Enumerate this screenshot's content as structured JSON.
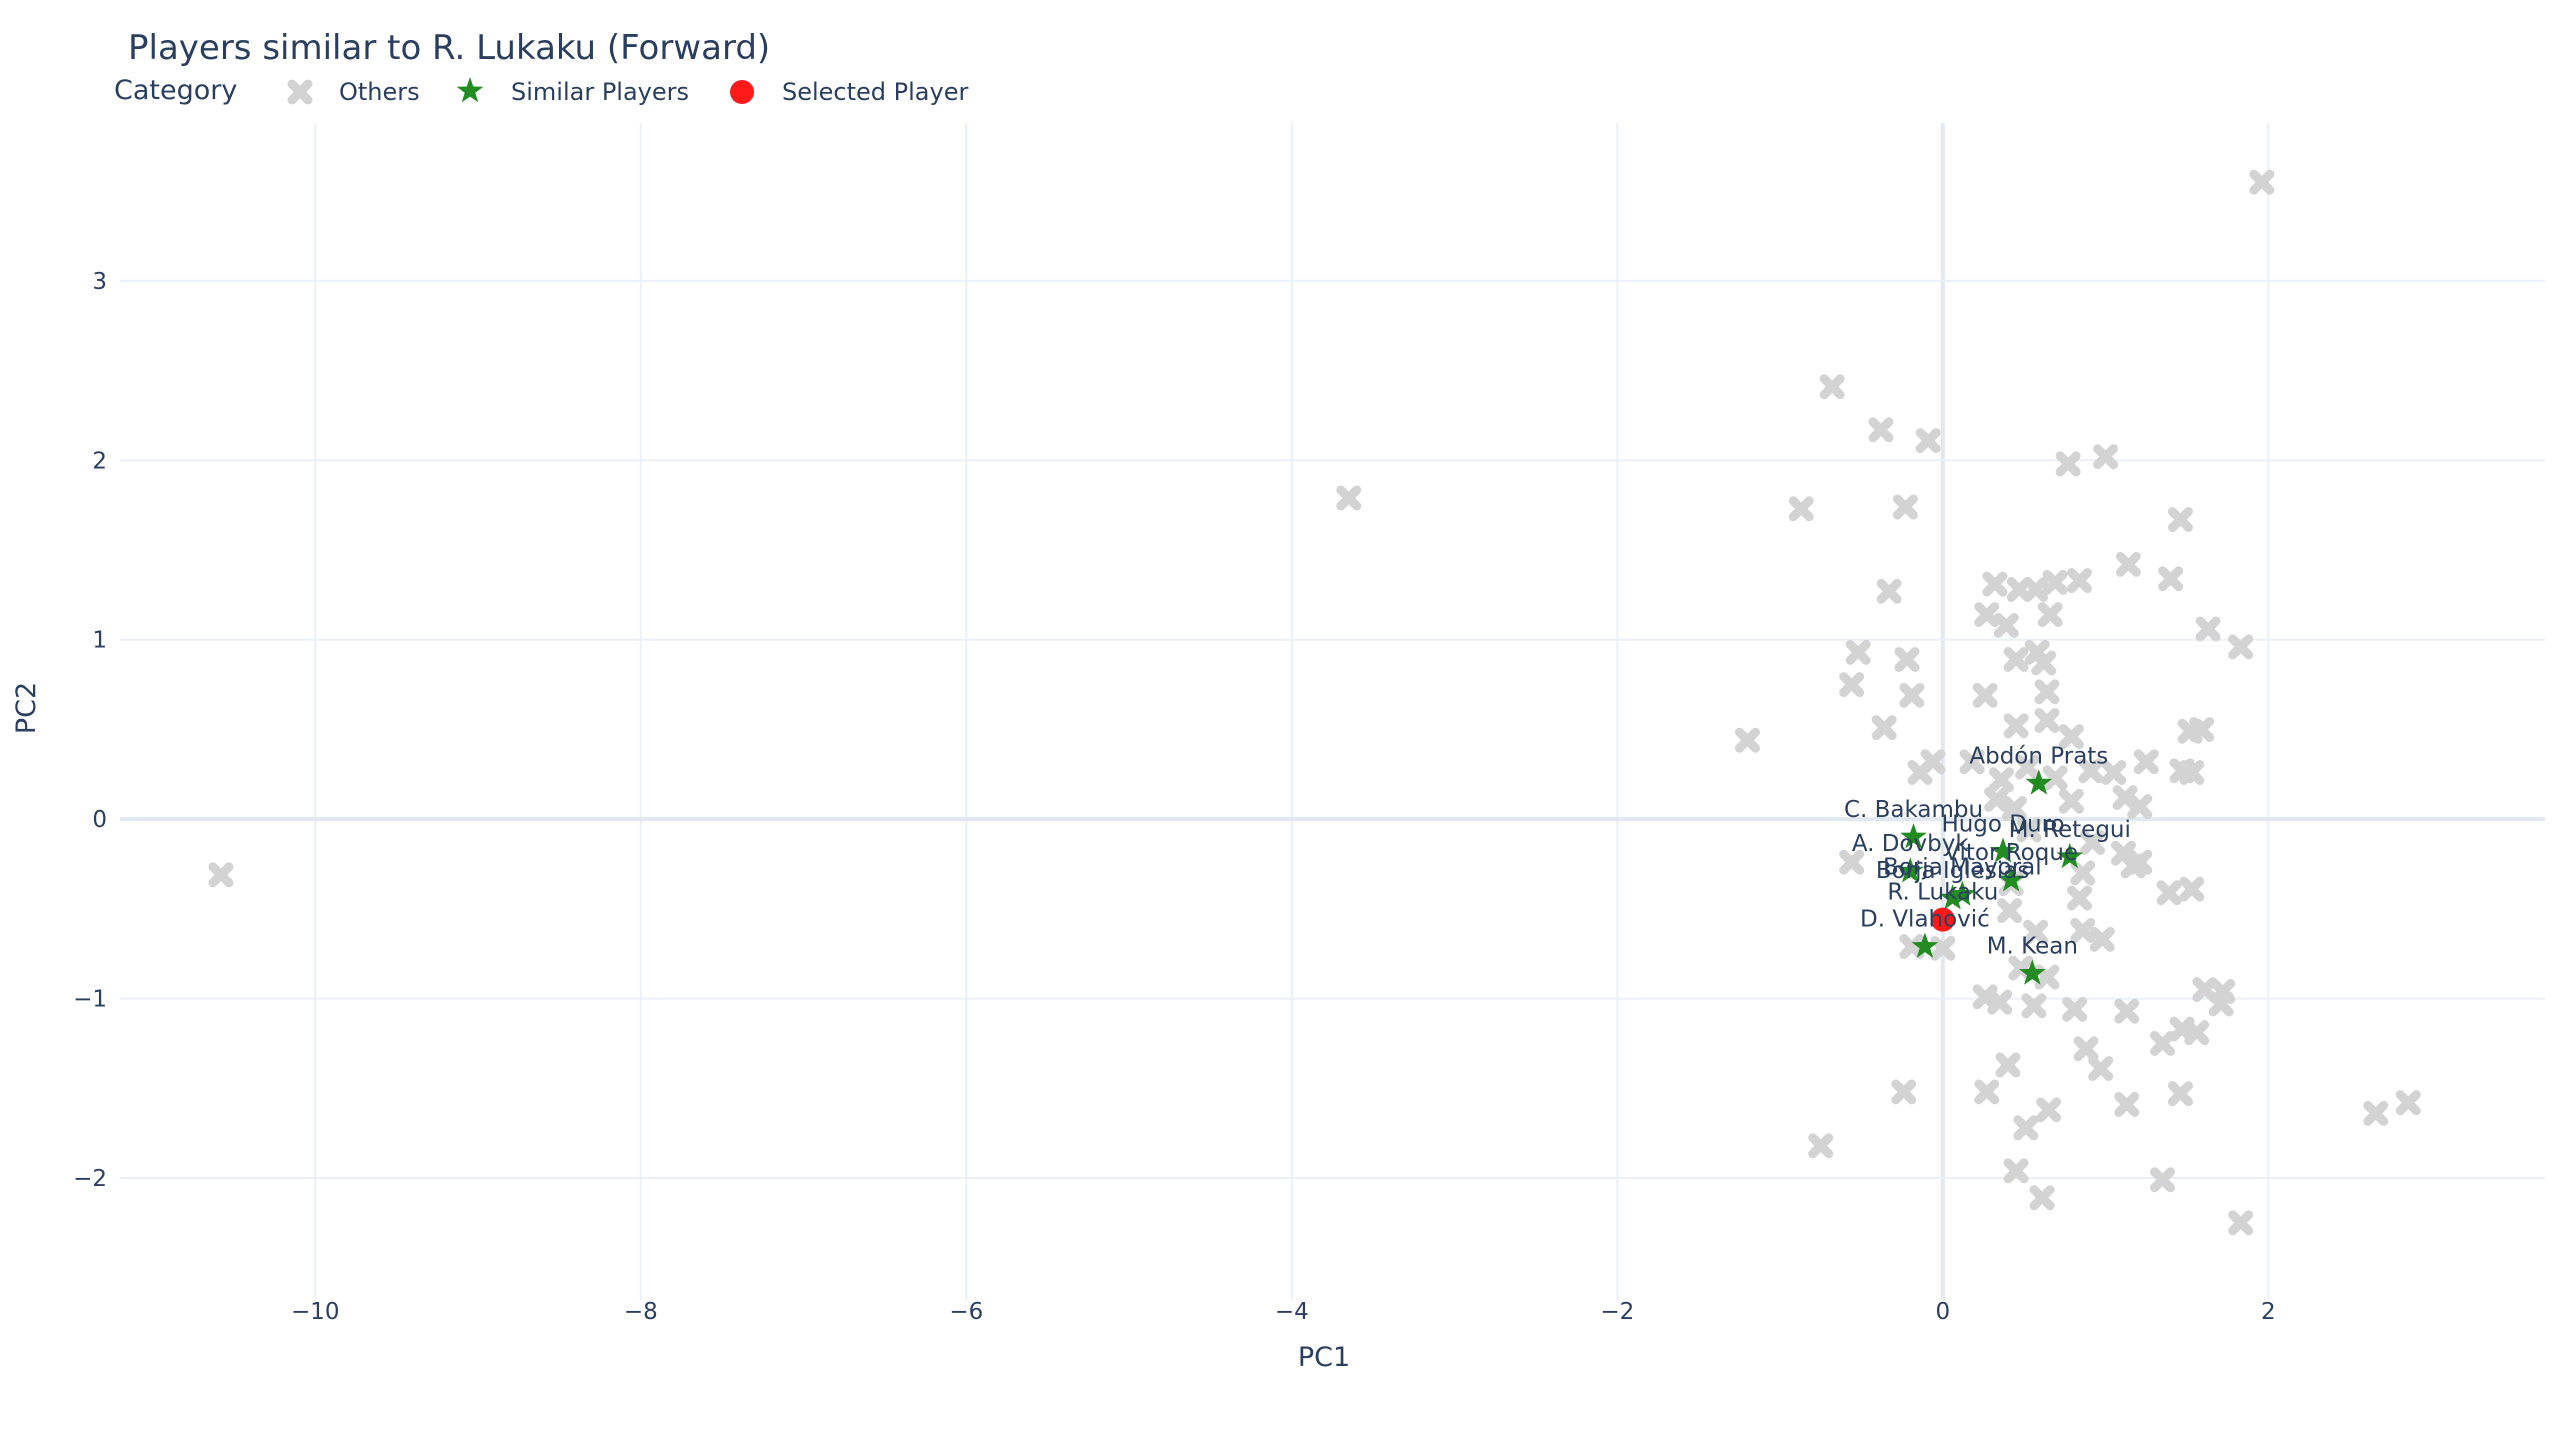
{
  "chart_data": {
    "type": "scatter",
    "title": "Players similar to R. Lukaku (Forward)",
    "xlabel": "PC1",
    "ylabel": "PC2",
    "xlim": [
      -11.2,
      3.7
    ],
    "ylim": [
      -2.68,
      3.88
    ],
    "x_ticks": [
      -10,
      -8,
      -6,
      -4,
      -2,
      0,
      2
    ],
    "y_ticks": [
      -2,
      -1,
      0,
      1,
      2,
      3
    ],
    "grid": true,
    "legend": {
      "title": "Category",
      "placement": "top-left, horizontal"
    },
    "colors": {
      "others": "#d3d3d3",
      "similar": "#228b22",
      "selected": "#ff1a1a",
      "grid": "#ebf0f8",
      "zeroline": "#e2e8f2"
    },
    "series": [
      {
        "name": "Others",
        "marker": "x",
        "points": [
          [
            -10.58,
            -0.31
          ],
          [
            -3.65,
            1.79
          ],
          [
            1.96,
            3.55
          ],
          [
            -0.68,
            2.41
          ],
          [
            -0.38,
            2.17
          ],
          [
            -0.09,
            2.11
          ],
          [
            0.77,
            1.98
          ],
          [
            1.0,
            2.02
          ],
          [
            -0.87,
            1.73
          ],
          [
            -0.23,
            1.74
          ],
          [
            1.46,
            1.67
          ],
          [
            1.14,
            1.42
          ],
          [
            1.4,
            1.34
          ],
          [
            -0.33,
            1.27
          ],
          [
            0.32,
            1.31
          ],
          [
            0.47,
            1.28
          ],
          [
            0.57,
            1.28
          ],
          [
            0.69,
            1.32
          ],
          [
            0.84,
            1.33
          ],
          [
            0.27,
            1.14
          ],
          [
            0.39,
            1.08
          ],
          [
            0.66,
            1.14
          ],
          [
            1.63,
            1.06
          ],
          [
            1.83,
            0.96
          ],
          [
            -0.52,
            0.93
          ],
          [
            -0.22,
            0.89
          ],
          [
            0.45,
            0.89
          ],
          [
            0.58,
            0.93
          ],
          [
            0.62,
            0.87
          ],
          [
            -0.56,
            0.75
          ],
          [
            -0.19,
            0.69
          ],
          [
            0.26,
            0.69
          ],
          [
            0.64,
            0.71
          ],
          [
            -0.36,
            0.51
          ],
          [
            0.45,
            0.52
          ],
          [
            0.64,
            0.55
          ],
          [
            0.79,
            0.46
          ],
          [
            1.52,
            0.49
          ],
          [
            1.59,
            0.5
          ],
          [
            -1.2,
            0.44
          ],
          [
            -0.14,
            0.26
          ],
          [
            -0.06,
            0.32
          ],
          [
            0.18,
            0.32
          ],
          [
            0.36,
            0.22
          ],
          [
            0.52,
            0.29
          ],
          [
            0.69,
            0.23
          ],
          [
            0.91,
            0.27
          ],
          [
            1.05,
            0.26
          ],
          [
            1.25,
            0.32
          ],
          [
            1.47,
            0.27
          ],
          [
            1.53,
            0.26
          ],
          [
            0.33,
            0.11
          ],
          [
            0.44,
            0.06
          ],
          [
            0.79,
            0.1
          ],
          [
            1.12,
            0.12
          ],
          [
            1.21,
            0.07
          ],
          [
            -0.56,
            -0.24
          ],
          [
            0.53,
            -0.06
          ],
          [
            0.92,
            -0.13
          ],
          [
            1.11,
            -0.19
          ],
          [
            1.21,
            -0.24
          ],
          [
            0.42,
            -0.36
          ],
          [
            0.86,
            -0.3
          ],
          [
            1.17,
            -0.26
          ],
          [
            0.41,
            -0.51
          ],
          [
            0.84,
            -0.44
          ],
          [
            1.39,
            -0.41
          ],
          [
            1.53,
            -0.39
          ],
          [
            -0.19,
            -0.71
          ],
          [
            0.0,
            -0.72
          ],
          [
            0.57,
            -0.63
          ],
          [
            0.86,
            -0.62
          ],
          [
            0.98,
            -0.67
          ],
          [
            0.48,
            -0.83
          ],
          [
            0.64,
            -0.88
          ],
          [
            1.61,
            -0.95
          ],
          [
            1.72,
            -0.96
          ],
          [
            0.26,
            -0.99
          ],
          [
            0.35,
            -1.02
          ],
          [
            0.56,
            -1.04
          ],
          [
            0.81,
            -1.06
          ],
          [
            1.13,
            -1.07
          ],
          [
            1.71,
            -1.03
          ],
          [
            1.47,
            -1.17
          ],
          [
            1.56,
            -1.19
          ],
          [
            0.88,
            -1.28
          ],
          [
            0.97,
            -1.39
          ],
          [
            1.35,
            -1.25
          ],
          [
            0.4,
            -1.37
          ],
          [
            0.27,
            -1.52
          ],
          [
            1.46,
            -1.53
          ],
          [
            -0.24,
            -1.52
          ],
          [
            0.65,
            -1.62
          ],
          [
            1.13,
            -1.59
          ],
          [
            0.51,
            -1.72
          ],
          [
            2.66,
            -1.64
          ],
          [
            2.86,
            -1.58
          ],
          [
            -0.75,
            -1.82
          ],
          [
            0.45,
            -1.96
          ],
          [
            1.35,
            -2.01
          ],
          [
            0.61,
            -2.11
          ],
          [
            1.83,
            -2.25
          ]
        ]
      },
      {
        "name": "Similar Players",
        "marker": "star",
        "points": [
          {
            "x": 0.59,
            "y": 0.2,
            "label": "Abdón Prats"
          },
          {
            "x": -0.18,
            "y": -0.1,
            "label": "C. Bakambu"
          },
          {
            "x": 0.37,
            "y": -0.18,
            "label": "Hugo Duro"
          },
          {
            "x": 0.78,
            "y": -0.21,
            "label": "M. Retegui"
          },
          {
            "x": -0.2,
            "y": -0.29,
            "label": "A. Dovbyk"
          },
          {
            "x": 0.42,
            "y": -0.34,
            "label": "Vitor Roque"
          },
          {
            "x": 0.12,
            "y": -0.42,
            "label": "Borja Mayoral"
          },
          {
            "x": 0.06,
            "y": -0.44,
            "label": "Borja Iglesias"
          },
          {
            "x": -0.11,
            "y": -0.71,
            "label": "D. Vlahović"
          },
          {
            "x": 0.55,
            "y": -0.86,
            "label": "M. Kean"
          }
        ]
      },
      {
        "name": "Selected Player",
        "marker": "circle",
        "points": [
          {
            "x": 0.0,
            "y": -0.56,
            "label": "R. Lukaku"
          }
        ]
      }
    ]
  }
}
